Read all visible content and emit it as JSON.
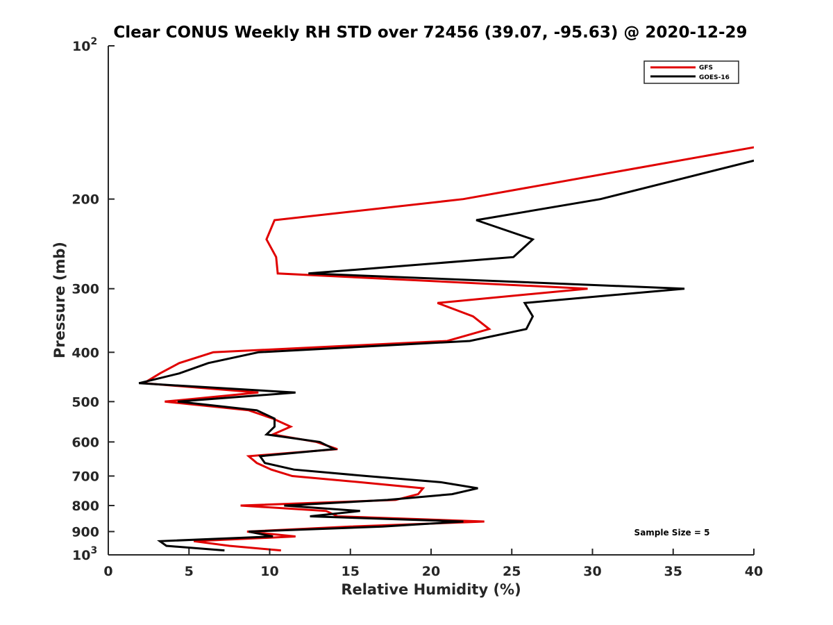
{
  "chart_data": {
    "type": "line",
    "title": "Clear CONUS Weekly RH STD over 72456 (39.07, -95.63) @ 2020-12-29",
    "xlabel": "Relative Humidity (%)",
    "ylabel": "Pressure (mb)",
    "xlim": [
      0,
      40
    ],
    "ylim": [
      100,
      1000
    ],
    "yscale": "log",
    "y_reversed": true,
    "grid": false,
    "x_ticks": [
      0,
      5,
      10,
      15,
      20,
      25,
      30,
      35,
      40
    ],
    "x_tick_labels": [
      "0",
      "5",
      "10",
      "15",
      "20",
      "25",
      "30",
      "35",
      "40"
    ],
    "y_ticks": [
      100,
      200,
      300,
      400,
      500,
      600,
      700,
      800,
      900,
      1000
    ],
    "y_tick_labels": [
      {
        "base": "10",
        "exp": "2"
      },
      {
        "text": "200"
      },
      {
        "text": "300"
      },
      {
        "text": "400"
      },
      {
        "text": "500"
      },
      {
        "text": "600"
      },
      {
        "text": "700"
      },
      {
        "text": "800"
      },
      {
        "text": "900"
      },
      {
        "base": "10",
        "exp": "3"
      }
    ],
    "legend": {
      "position": "top-right",
      "entries": [
        {
          "name": "GFS",
          "color": "#e00000"
        },
        {
          "name": "GOES-16",
          "color": "#000000"
        }
      ]
    },
    "annotation": "Sample Size = 5",
    "pressure_levels": [
      150,
      200,
      220,
      240,
      260,
      280,
      300,
      320,
      340,
      360,
      380,
      400,
      420,
      440,
      460,
      480,
      500,
      520,
      540,
      560,
      580,
      600,
      620,
      640,
      660,
      680,
      700,
      720,
      740,
      760,
      780,
      800,
      820,
      840,
      860,
      880,
      900,
      920,
      940,
      960,
      980
    ],
    "series": [
      {
        "name": "GFS",
        "color": "#e00000",
        "values": [
          44.1,
          22.0,
          10.3,
          9.8,
          10.4,
          10.5,
          29.7,
          20.4,
          22.6,
          23.6,
          21.0,
          6.5,
          4.4,
          3.2,
          2.2,
          9.3,
          3.5,
          8.7,
          10.2,
          11.3,
          10.2,
          12.9,
          14.2,
          8.7,
          9.2,
          10.1,
          11.4,
          15.6,
          19.5,
          19.2,
          17.8,
          8.2,
          13.5,
          14.2,
          23.3,
          15.0,
          8.6,
          11.6,
          5.3,
          7.5,
          10.7
        ]
      },
      {
        "name": "GOES-16",
        "color": "#000000",
        "values": [
          46.2,
          30.5,
          22.8,
          26.3,
          25.1,
          12.4,
          35.7,
          25.8,
          26.3,
          25.9,
          22.4,
          9.3,
          6.2,
          4.4,
          1.9,
          11.6,
          4.3,
          9.2,
          10.3,
          10.3,
          9.8,
          13.1,
          14.0,
          9.4,
          9.7,
          11.5,
          16.0,
          20.6,
          22.9,
          21.3,
          17.3,
          10.9,
          15.6,
          12.5,
          22.0,
          17.0,
          8.7,
          10.2,
          3.2,
          3.6,
          7.2
        ]
      }
    ]
  }
}
